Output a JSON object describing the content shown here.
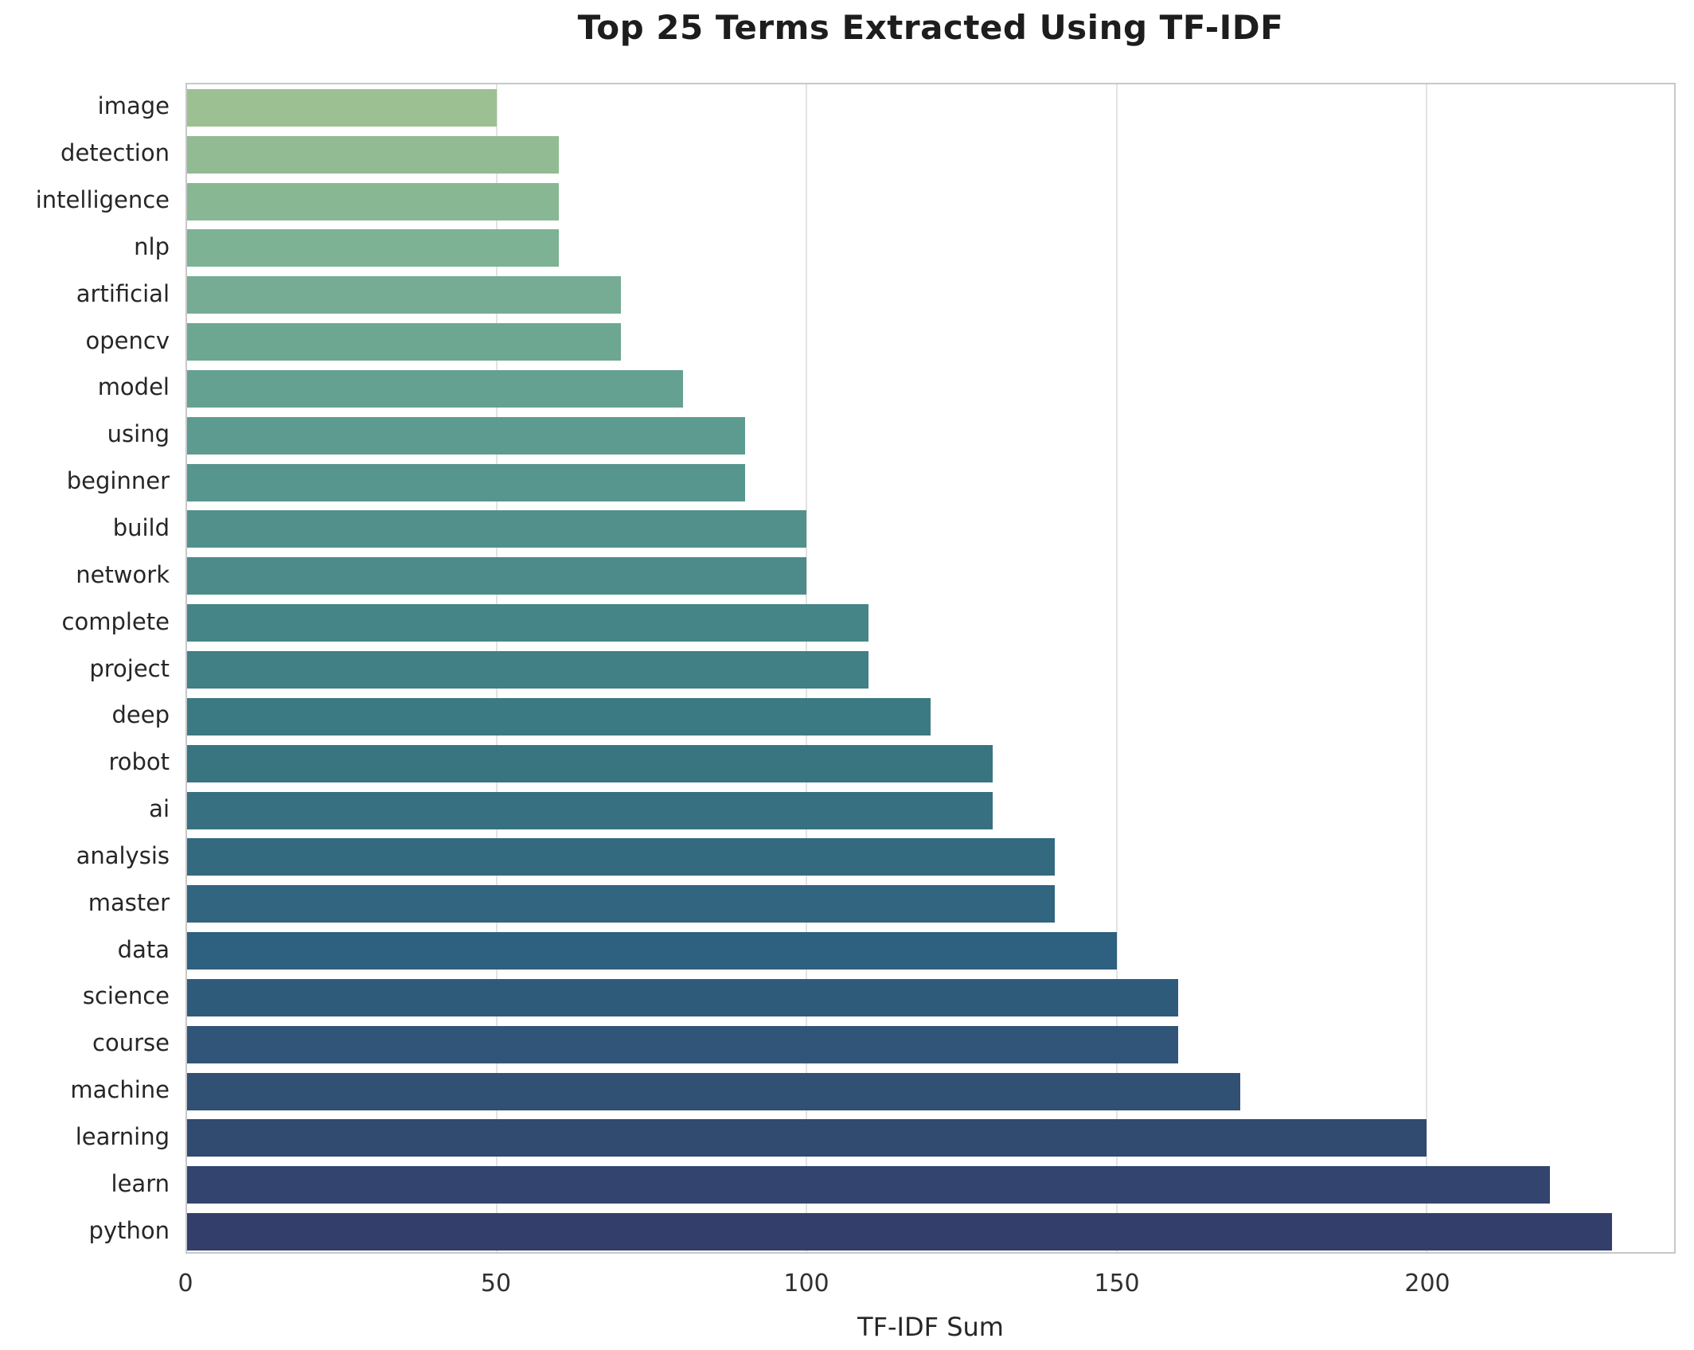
{
  "chart_data": {
    "type": "bar",
    "orientation": "horizontal",
    "title": "Top 25 Terms Extracted Using TF-IDF",
    "xlabel": "TF-IDF Sum",
    "ylabel": "",
    "categories": [
      "image",
      "detection",
      "intelligence",
      "nlp",
      "artificial",
      "opencv",
      "model",
      "using",
      "beginner",
      "build",
      "network",
      "complete",
      "project",
      "deep",
      "robot",
      "ai",
      "analysis",
      "master",
      "data",
      "science",
      "course",
      "machine",
      "learning",
      "learn",
      "python"
    ],
    "values": [
      50,
      60,
      60,
      60,
      70,
      70,
      80,
      90,
      90,
      100,
      100,
      110,
      110,
      120,
      130,
      130,
      140,
      140,
      150,
      160,
      160,
      170,
      200,
      220,
      230
    ],
    "bar_colors": [
      "#9dc092",
      "#92bb93",
      "#88b793",
      "#7db294",
      "#75ac93",
      "#6da792",
      "#65a191",
      "#5d9b90",
      "#57968e",
      "#52908b",
      "#4c8b89",
      "#468587",
      "#418084",
      "#3b7a82",
      "#387581",
      "#367081",
      "#336a80",
      "#316580",
      "#2e607f",
      "#2f5b7b",
      "#305578",
      "#305074",
      "#314a70",
      "#33446e",
      "#343e6b"
    ],
    "x_ticks": [
      0,
      50,
      100,
      150,
      200
    ],
    "xlim": [
      0,
      240
    ],
    "grid": "vertical",
    "legend": "none",
    "style": {
      "grid_color": "#e3e3e3",
      "spine_color": "#c6c8ca",
      "title_color": "#1d1d1d",
      "tick_label_color": "#303030",
      "category_label_color": "#262626",
      "palette_name": "crest"
    }
  }
}
